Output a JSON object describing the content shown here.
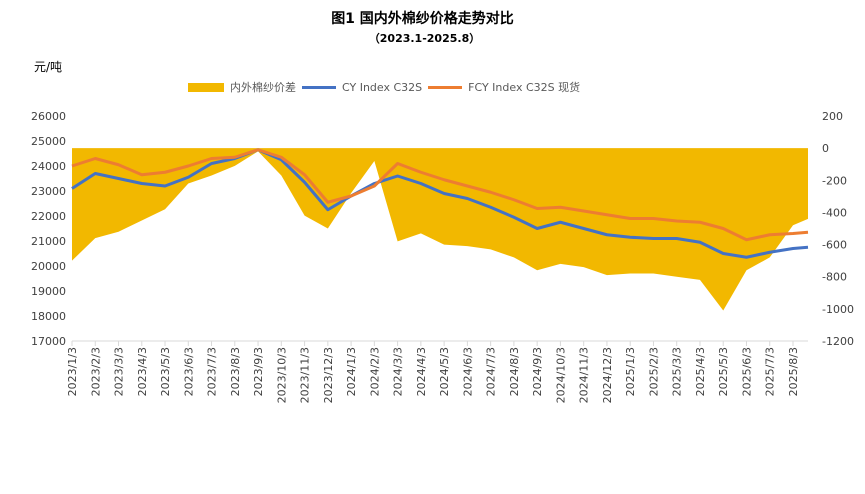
{
  "chart_data": {
    "type": "line",
    "title": "图1   国内外棉纱价格走势对比",
    "subtitle": "（2023.1-2025.8）",
    "ylabel": "元/吨",
    "ylim": [
      17000,
      26000
    ],
    "yticks": [
      26000,
      25000,
      24000,
      23000,
      22000,
      21000,
      20000,
      19000,
      18000,
      17000
    ],
    "y2lim": [
      -1200,
      200
    ],
    "y2ticks": [
      200,
      0,
      -200,
      -400,
      -600,
      -800,
      -1000,
      -1200
    ],
    "legend_position": "top",
    "x": [
      "2023/1/3",
      "2023/2/3",
      "2023/3/3",
      "2023/4/3",
      "2023/5/3",
      "2023/6/3",
      "2023/7/3",
      "2023/8/3",
      "2023/9/3",
      "2023/10/3",
      "2023/11/3",
      "2023/12/3",
      "2024/1/3",
      "2024/2/3",
      "2024/3/3",
      "2024/4/3",
      "2024/5/3",
      "2024/6/3",
      "2024/7/3",
      "2024/8/3",
      "2024/9/3",
      "2024/10/3",
      "2024/11/3",
      "2024/12/3",
      "2025/1/3",
      "2025/2/3",
      "2025/3/3",
      "2025/4/3",
      "2025/5/3",
      "2025/6/3",
      "2025/7/3",
      "2025/8/3"
    ],
    "series": [
      {
        "name": "内外棉纱价差",
        "type": "area",
        "axis": "right",
        "color": "#f2b800",
        "values": [
          -700,
          -560,
          -520,
          -450,
          -380,
          -220,
          -170,
          -110,
          -20,
          -170,
          -420,
          -500,
          -280,
          -80,
          -580,
          -530,
          -600,
          -610,
          -630,
          -680,
          -760,
          -720,
          -740,
          -790,
          -780,
          -780,
          -800,
          -820,
          -1010,
          -760,
          -680,
          -480
        ]
      },
      {
        "name": "CY Index C32S",
        "type": "line",
        "axis": "left",
        "color": "#4472c4",
        "values": [
          23100,
          23700,
          23500,
          23300,
          23200,
          23550,
          24100,
          24300,
          24650,
          24250,
          23350,
          22250,
          22800,
          23300,
          23600,
          23300,
          22900,
          22700,
          22350,
          21950,
          21500,
          21750,
          21500,
          21250,
          21150,
          21100,
          21100,
          20950,
          20500,
          20350,
          20550,
          20700
        ]
      },
      {
        "name": "FCY Index C32S 现货",
        "type": "line",
        "axis": "left",
        "color": "#ed7d31",
        "values": [
          24000,
          24300,
          24050,
          23650,
          23750,
          24000,
          24300,
          24350,
          24650,
          24350,
          23650,
          22550,
          22800,
          23200,
          24100,
          23750,
          23450,
          23200,
          22950,
          22650,
          22300,
          22350,
          22200,
          22050,
          21900,
          21900,
          21800,
          21750,
          21500,
          21050,
          21250,
          21300
        ]
      }
    ]
  }
}
